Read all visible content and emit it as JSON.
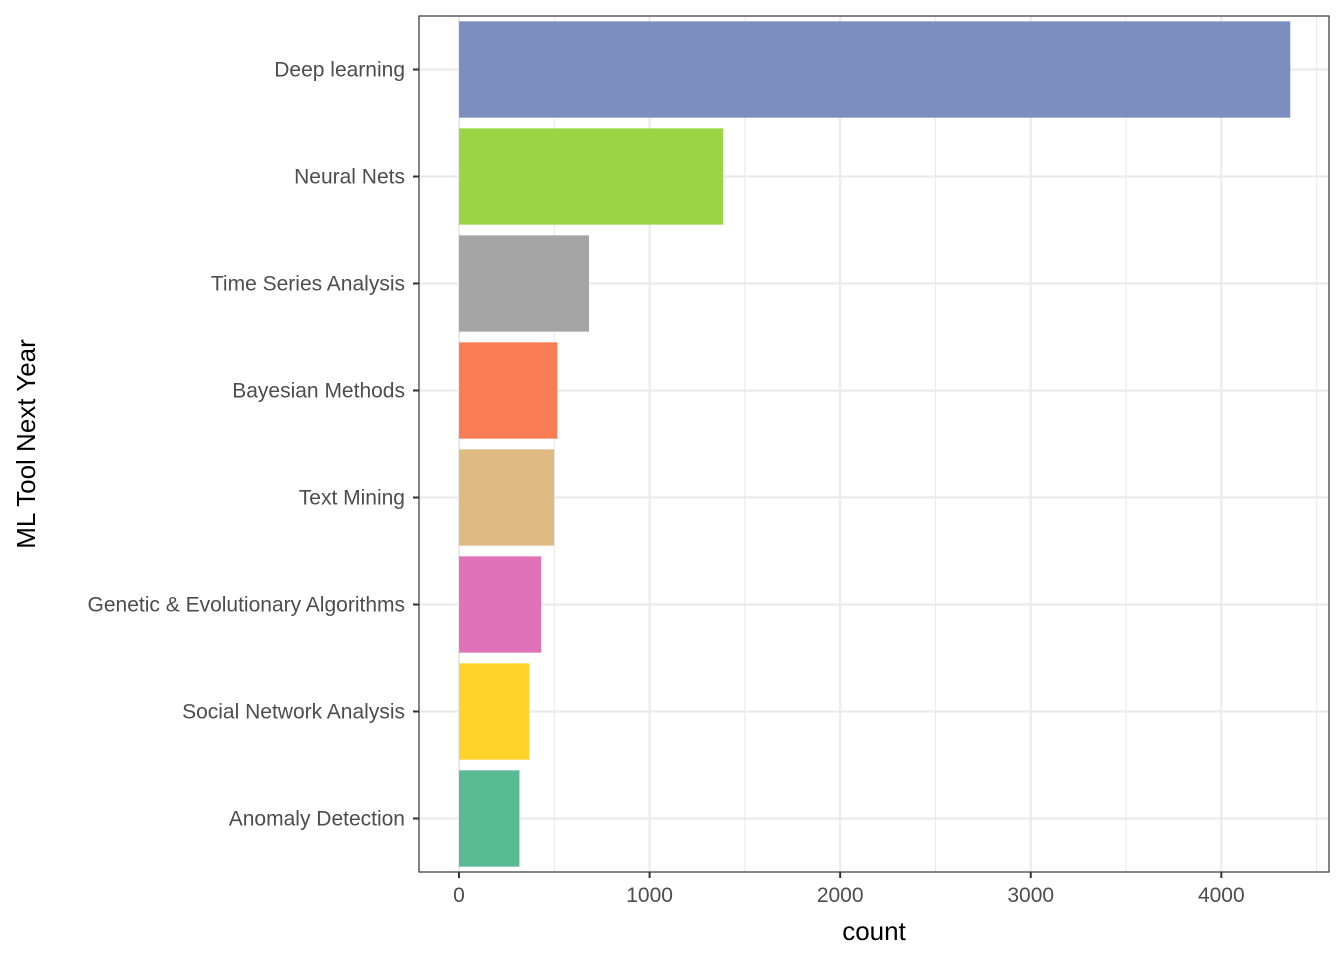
{
  "chart_data": {
    "type": "bar",
    "orientation": "horizontal",
    "xlabel": "count",
    "ylabel": "ML Tool Next Year",
    "xlim": [
      -210,
      4565
    ],
    "xticks": [
      0,
      1000,
      2000,
      3000,
      4000
    ],
    "xtick_labels": [
      "0",
      "1000",
      "2000",
      "3000",
      "4000"
    ],
    "grid": true,
    "legend": "none",
    "categories": [
      "Deep learning",
      "Neural Nets",
      "Time Series Analysis",
      "Bayesian Methods",
      "Text Mining",
      "Genetic & Evolutionary Algorithms",
      "Social Network Analysis",
      "Anomaly Detection"
    ],
    "values": [
      4362,
      1386,
      682,
      516,
      499,
      431,
      369,
      317
    ],
    "colors": [
      "#7b8ebf",
      "#9bd546",
      "#a5a5a5",
      "#f97d54",
      "#dfbb84",
      "#e073b7",
      "#fed42a",
      "#59bb93"
    ]
  }
}
